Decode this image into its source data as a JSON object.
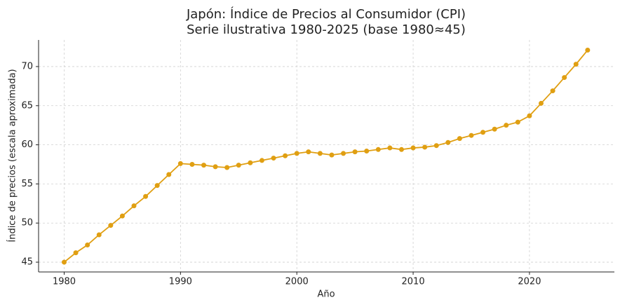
{
  "chart_data": {
    "type": "line",
    "title": "Japón: Índice de Precios al Consumidor (CPI)",
    "subtitle": "Serie ilustrativa 1980-2025 (base 1980≈45)",
    "x_label": "Año",
    "y_label": "Índice de precios (escala aproximada)",
    "x": [
      1980,
      1981,
      1982,
      1983,
      1984,
      1985,
      1986,
      1987,
      1988,
      1989,
      1990,
      1991,
      1992,
      1993,
      1994,
      1995,
      1996,
      1997,
      1998,
      1999,
      2000,
      2001,
      2002,
      2003,
      2004,
      2005,
      2006,
      2007,
      2008,
      2009,
      2010,
      2011,
      2012,
      2013,
      2014,
      2015,
      2016,
      2017,
      2018,
      2019,
      2020,
      2021,
      2022,
      2023,
      2024,
      2025
    ],
    "series": [
      {
        "name": "CPI",
        "color": "#e09f12",
        "values": [
          45.0,
          46.2,
          47.2,
          48.5,
          49.7,
          50.9,
          52.2,
          53.4,
          54.8,
          56.2,
          57.6,
          57.5,
          57.4,
          57.2,
          57.1,
          57.4,
          57.7,
          58.0,
          58.3,
          58.6,
          58.9,
          59.1,
          58.9,
          58.7,
          58.9,
          59.1,
          59.2,
          59.4,
          59.6,
          59.4,
          59.6,
          59.7,
          59.9,
          60.3,
          60.8,
          61.2,
          61.6,
          62.0,
          62.5,
          62.9,
          63.7,
          65.3,
          66.9,
          68.6,
          70.3,
          72.1
        ]
      }
    ],
    "xlim": [
      1977.8,
      2027.3
    ],
    "xticks": [
      1980,
      1990,
      2000,
      2010,
      2020
    ],
    "ylim": [
      43.75,
      73.4
    ],
    "yticks": [
      45,
      50,
      55,
      60,
      65,
      70
    ],
    "grid": true
  }
}
